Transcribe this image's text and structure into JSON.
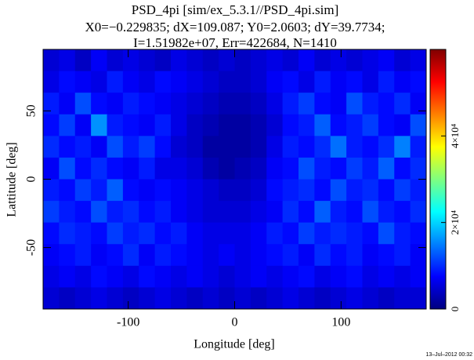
{
  "chart_data": {
    "type": "heatmap",
    "title": "PSD_4pi [sim/ex_5.3.1//PSD_4pi.sim]",
    "subtitle": "X0=−0.229835; dX=109.087; Y0=2.0603; dY=39.7734;",
    "annotation": "I=1.51982e+07, Err=422684, N=1410",
    "date": "13–Jul–2012 00:32",
    "x_label": "Longitude [deg]",
    "y_label": "Lattitude [deg]",
    "xlim": [
      -180,
      180
    ],
    "xticks": [
      -100,
      0,
      100
    ],
    "ylim": [
      -95,
      95
    ],
    "yticks": [
      -50,
      0,
      50
    ],
    "zlim": [
      0,
      60000
    ],
    "zticks": [
      0,
      {
        "value": 20000,
        "label": "2×10⁴"
      },
      {
        "value": 40000,
        "label": "4×10⁴"
      }
    ],
    "colormap": "jet",
    "z": [
      [
        5000,
        6000,
        4000,
        7000,
        5000,
        6000,
        5000,
        4000,
        6000,
        5000,
        4000,
        5000,
        4000,
        5000,
        6000,
        5000,
        7000,
        5000,
        6000,
        5000,
        6000,
        7000,
        5000,
        6000
      ],
      [
        6000,
        8000,
        7000,
        6000,
        9000,
        7000,
        6000,
        8000,
        7000,
        6000,
        5000,
        4000,
        4000,
        5000,
        7000,
        8000,
        6000,
        9000,
        7000,
        8000,
        6000,
        9000,
        7000,
        8000
      ],
      [
        9000,
        7000,
        12000,
        8000,
        7000,
        9000,
        8000,
        7000,
        6000,
        5000,
        4000,
        3000,
        3000,
        4000,
        6000,
        9000,
        11000,
        8000,
        7000,
        12000,
        9000,
        8000,
        10000,
        7000
      ],
      [
        8000,
        11000,
        7000,
        16000,
        9000,
        8000,
        7000,
        9000,
        6000,
        4000,
        3000,
        2000,
        2000,
        3000,
        5000,
        8000,
        9000,
        13000,
        8000,
        9000,
        11000,
        8000,
        7000,
        12000
      ],
      [
        10000,
        8000,
        9000,
        7000,
        12000,
        9000,
        11000,
        8000,
        5000,
        4000,
        2000,
        2000,
        2000,
        3000,
        6000,
        9000,
        8000,
        10000,
        14000,
        9000,
        8000,
        10000,
        15000,
        9000
      ],
      [
        7000,
        12000,
        8000,
        10000,
        8000,
        7000,
        9000,
        6000,
        6000,
        5000,
        3000,
        2000,
        3000,
        4000,
        7000,
        8000,
        12000,
        9000,
        8000,
        11000,
        9000,
        13000,
        8000,
        10000
      ],
      [
        9000,
        8000,
        11000,
        9000,
        13000,
        8000,
        7000,
        8000,
        7000,
        6000,
        5000,
        4000,
        4000,
        5000,
        8000,
        9000,
        10000,
        8000,
        12000,
        9000,
        10000,
        8000,
        11000,
        9000
      ],
      [
        11000,
        9000,
        8000,
        12000,
        9000,
        10000,
        8000,
        9000,
        7000,
        6000,
        5000,
        5000,
        5000,
        6000,
        7000,
        10000,
        8000,
        13000,
        9000,
        8000,
        12000,
        9000,
        8000,
        10000
      ],
      [
        8000,
        10000,
        9000,
        8000,
        11000,
        9000,
        10000,
        8000,
        9000,
        7000,
        6000,
        6000,
        6000,
        7000,
        9000,
        8000,
        11000,
        9000,
        10000,
        9000,
        8000,
        12000,
        9000,
        8000
      ],
      [
        7000,
        8000,
        9000,
        7000,
        8000,
        10000,
        7000,
        9000,
        8000,
        7000,
        6000,
        7000,
        6000,
        7000,
        8000,
        9000,
        7000,
        10000,
        8000,
        9000,
        7000,
        8000,
        9000,
        7000
      ],
      [
        6000,
        7000,
        6000,
        8000,
        7000,
        6000,
        8000,
        7000,
        6000,
        7000,
        6000,
        5000,
        6000,
        7000,
        6000,
        7000,
        8000,
        6000,
        7000,
        8000,
        6000,
        7000,
        6000,
        7000
      ],
      [
        5000,
        4000,
        5000,
        6000,
        5000,
        4000,
        5000,
        6000,
        5000,
        4000,
        5000,
        4000,
        5000,
        4000,
        5000,
        6000,
        5000,
        4000,
        5000,
        6000,
        5000,
        4000,
        5000,
        5000
      ]
    ]
  }
}
